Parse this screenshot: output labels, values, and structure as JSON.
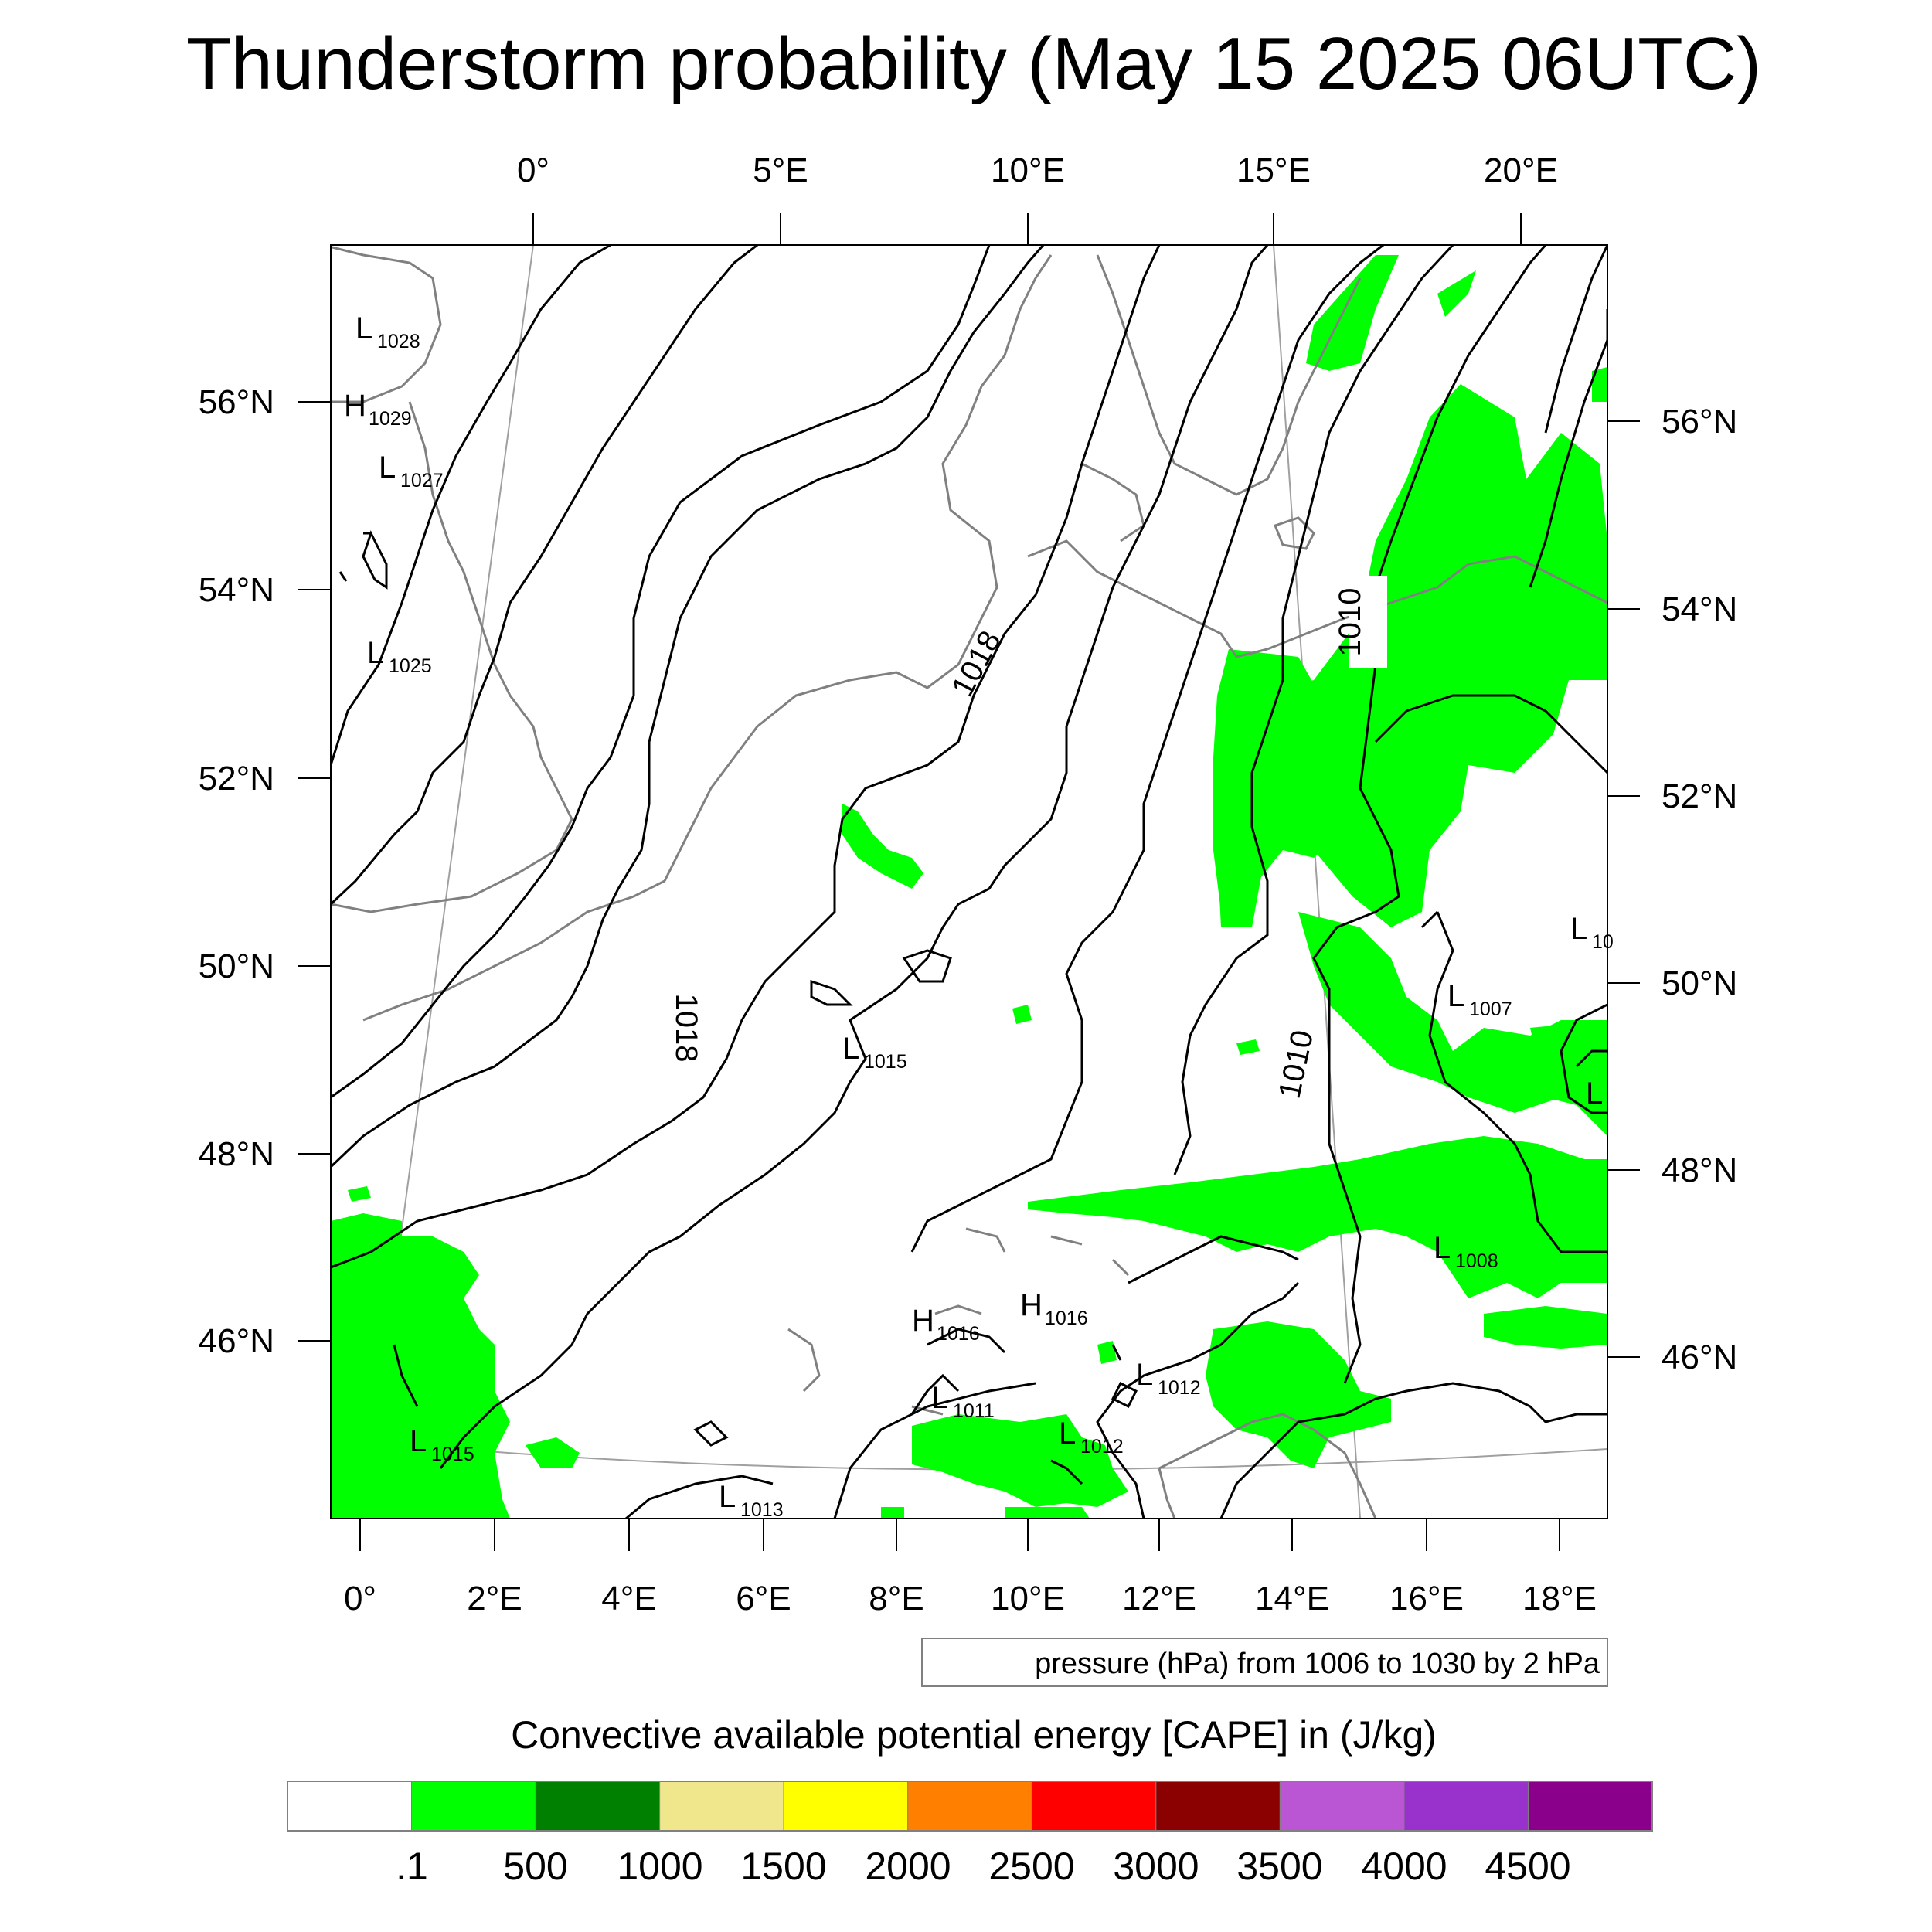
{
  "title": "Thunderstorm probability (May 15 2025 06UTC)",
  "top_lon_labels": [
    "0°",
    "5°E",
    "10°E",
    "15°E",
    "20°E"
  ],
  "bottom_lon_labels": [
    "0°",
    "2°E",
    "4°E",
    "6°E",
    "8°E",
    "10°E",
    "12°E",
    "14°E",
    "16°E",
    "18°E"
  ],
  "left_lat_labels": [
    "56°N",
    "54°N",
    "52°N",
    "50°N",
    "48°N",
    "46°N"
  ],
  "right_lat_labels": [
    "56°N",
    "54°N",
    "52°N",
    "50°N",
    "48°N",
    "46°N"
  ],
  "pressure_centers": [
    {
      "letter": "L",
      "value": "1028"
    },
    {
      "letter": "H",
      "value": "1029"
    },
    {
      "letter": "L",
      "value": "1027"
    },
    {
      "letter": "L",
      "value": "1025"
    },
    {
      "letter": "L",
      "value": "1015"
    },
    {
      "letter": "L",
      "value": "1015"
    },
    {
      "letter": "L",
      "value": "1013"
    },
    {
      "letter": "H",
      "value": "1016"
    },
    {
      "letter": "H",
      "value": "1016"
    },
    {
      "letter": "L",
      "value": "1011"
    },
    {
      "letter": "L",
      "value": "1012"
    },
    {
      "letter": "L",
      "value": "1012"
    },
    {
      "letter": "L",
      "value": "1007"
    },
    {
      "letter": "L",
      "value": "1008"
    },
    {
      "letter": "L",
      "value": "10"
    },
    {
      "letter": "L",
      "value": ""
    }
  ],
  "contour_labels": [
    "1018",
    "1018",
    "1010",
    "1010"
  ],
  "contour_info": "pressure (hPa) from 1006 to 1030 by 2 hPa",
  "colorbar": {
    "title": "Convective available potential energy [CAPE] in (J/kg)",
    "colors": [
      "#ffffff",
      "#00ff00",
      "#008000",
      "#f0e68c",
      "#ffff00",
      "#ff8000",
      "#ff0000",
      "#8b0000",
      "#ba55d3",
      "#9932cc",
      "#8b008b"
    ],
    "tick_labels": [
      ".1",
      "500",
      "1000",
      "1500",
      "2000",
      "2500",
      "3000",
      "3500",
      "4000",
      "4500"
    ]
  }
}
